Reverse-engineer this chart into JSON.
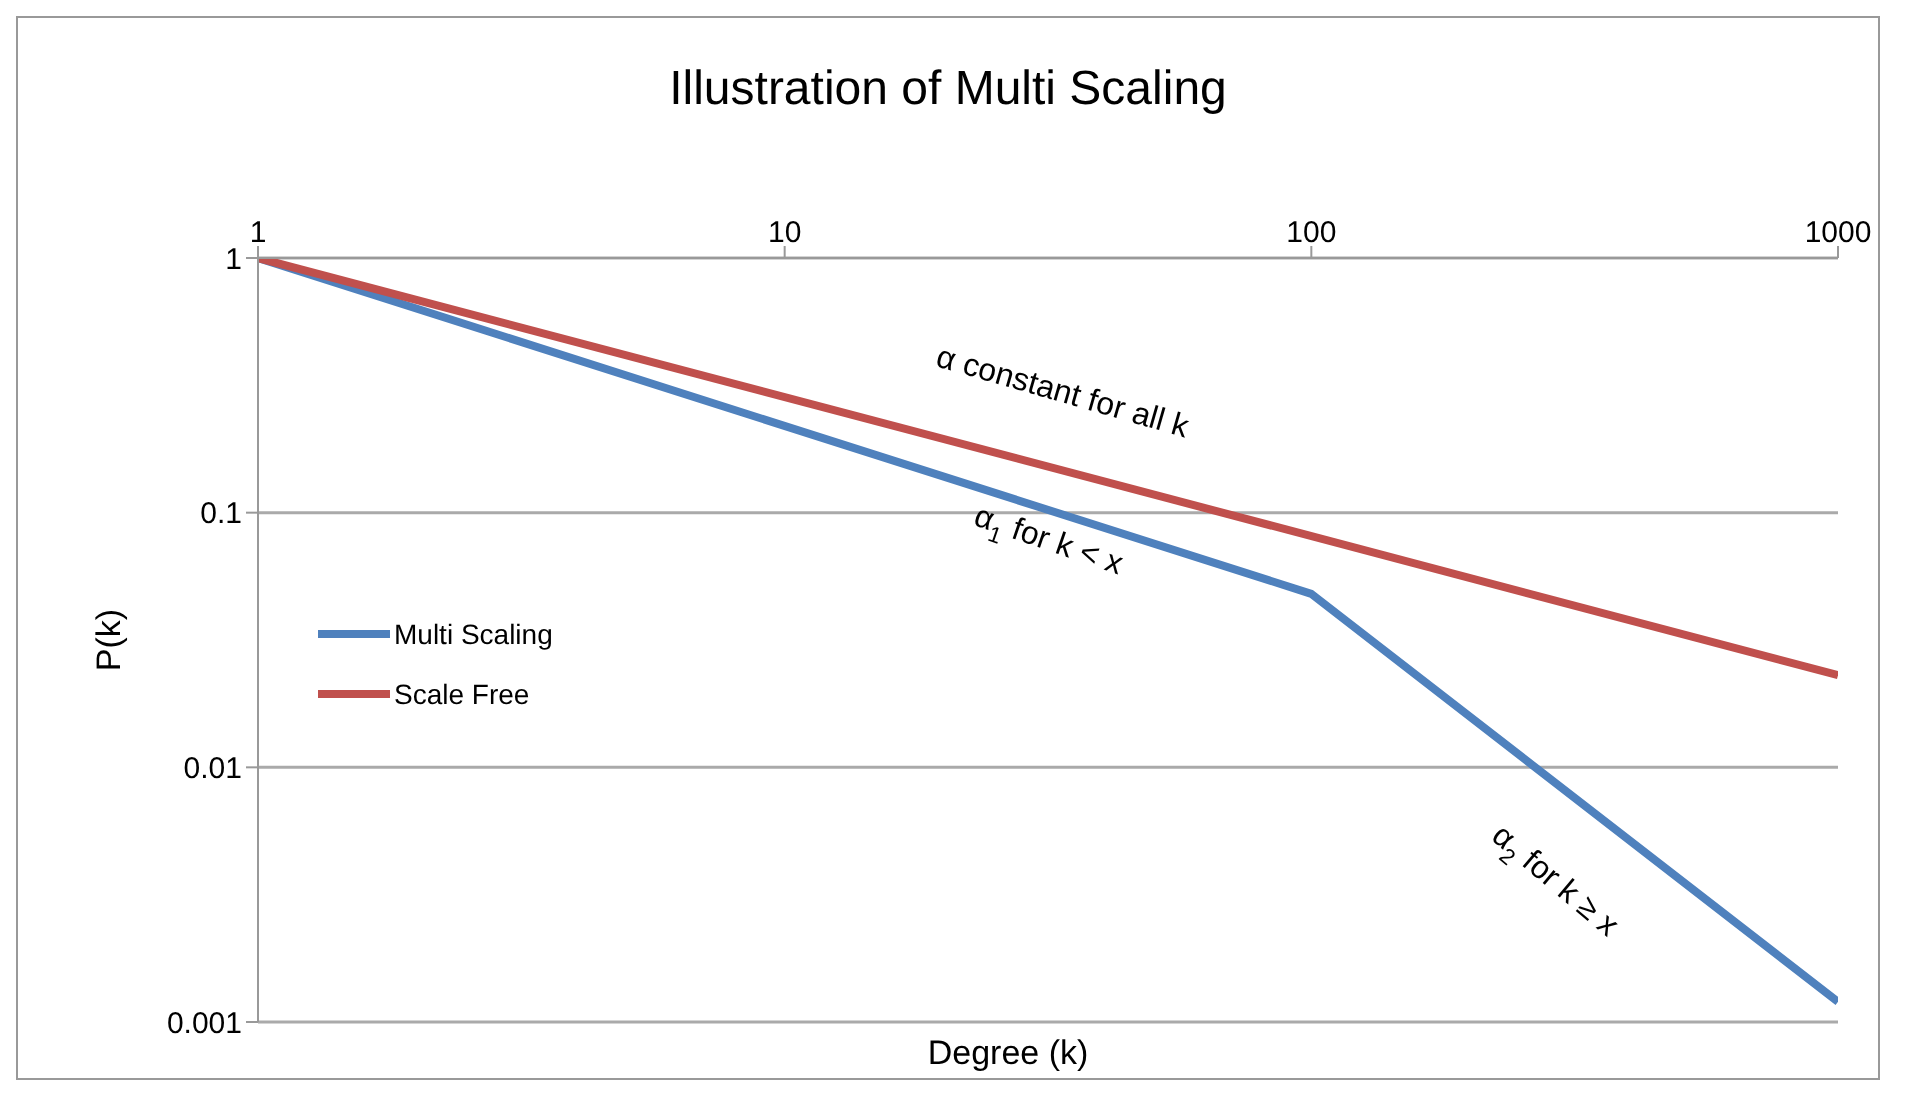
{
  "chart_data": {
    "type": "line",
    "title": "Illustration of Multi Scaling",
    "xlabel": "Degree (k)",
    "ylabel": "P(k)",
    "log": "xy",
    "grid": "y",
    "legend": "left",
    "marker": "none",
    "xlim": [
      1,
      1000
    ],
    "xticks": [
      1,
      10,
      100,
      1000
    ],
    "ylim": [
      0.001,
      1
    ],
    "yticks": [
      0.001,
      0.01,
      0.1,
      1
    ],
    "series": [
      {
        "name": "Multi Scaling",
        "color": "#4f81bd",
        "x": [
          1,
          100,
          1000
        ],
        "values": [
          1,
          0.048,
          0.0012
        ]
      },
      {
        "name": "Scale Free",
        "color": "#c0504d",
        "x": [
          1,
          1000
        ],
        "values": [
          1,
          0.023
        ]
      }
    ],
    "annotations": [
      "α  constant for all k",
      "α$_{1}$ for k < x",
      "α$_{2}$ for k ≥ x"
    ]
  }
}
